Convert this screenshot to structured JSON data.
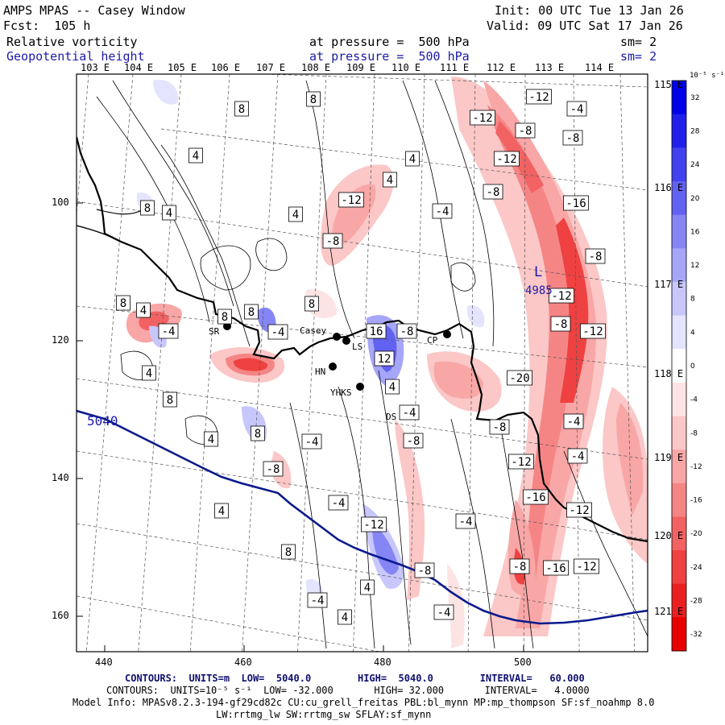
{
  "header": {
    "title": "AMPS MPAS -- Casey Window",
    "init": "Init: 00 UTC Tue 13 Jan 26",
    "fcst": "Fcst:  105 h",
    "valid": "Valid: 09 UTC Sat 17 Jan 26",
    "field1_name": "Relative vorticity",
    "field1_level": "at pressure =  500 hPa",
    "field1_sm": "sm= 2",
    "field2_name": "Geopotential height",
    "field2_level": "at pressure =  500 hPa",
    "field2_sm": "sm= 2"
  },
  "colors": {
    "positive_vorticity": "#ff0000",
    "negative_vorticity": "#0000ff",
    "height_contour": "#0a1a8c",
    "coast": "#000000"
  },
  "map": {
    "top_lon_labels": [
      "103 E",
      "104 E",
      "105 E",
      "106 E",
      "107 E",
      "108 E",
      "109 E",
      "110 E",
      "111 E",
      "112 E",
      "113 E",
      "114 E"
    ],
    "right_lon_labels": [
      "115 E",
      "116 E",
      "117 E",
      "118 E",
      "119 E",
      "120 E",
      "121 E"
    ],
    "x_ticks": [
      "440",
      "460",
      "480",
      "500"
    ],
    "y_ticks": [
      "100",
      "120",
      "140",
      "160"
    ],
    "height_label": "5040",
    "low_label": "L",
    "low_value": "4985",
    "stations": [
      {
        "name": "SR"
      },
      {
        "name": "Casey"
      },
      {
        "name": "LS"
      },
      {
        "name": "CP"
      },
      {
        "name": "HN"
      },
      {
        "name": "YHKS"
      },
      {
        "name": "DS"
      }
    ],
    "contour_labels": [
      "8",
      "8",
      "4",
      "8",
      "4",
      "4",
      "4",
      "8",
      "4",
      "-4",
      "4",
      "8",
      "8",
      "-4",
      "-8",
      "-12",
      "8",
      "16",
      "-8",
      "12",
      "-4",
      "8",
      "4",
      "-8",
      "4",
      "-12",
      "-4",
      "-8",
      "-12",
      "-12",
      "-8",
      "-16",
      "-8",
      "-12",
      "-8",
      "-12",
      "-20",
      "-4",
      "-4",
      "-8",
      "-12",
      "-12",
      "-16",
      "-8",
      "-16",
      "-12",
      "-4",
      "-8",
      "-4",
      "4",
      "4",
      "4",
      "-4",
      "8",
      "-4",
      "-8",
      "-4",
      "4",
      "8",
      "-12",
      "-4",
      "-8"
    ]
  },
  "colorbar": {
    "unit": "10⁻⁵ s⁻¹",
    "labels": [
      "32",
      "28",
      "24",
      "20",
      "16",
      "12",
      "8",
      "4",
      "0",
      "-4",
      "-8",
      "-12",
      "-16",
      "-20",
      "-24",
      "-28",
      "-32"
    ],
    "colors": [
      "#0000e6",
      "#2020ea",
      "#4141ef",
      "#6262f2",
      "#8585f5",
      "#a6a6f8",
      "#c7c7fb",
      "#e4e4fe",
      "#ffffff",
      "#fde4e4",
      "#fbc7c7",
      "#f8a6a6",
      "#f58585",
      "#f26262",
      "#ef4141",
      "#ea2020",
      "#e60000"
    ]
  },
  "footer": {
    "contours1": "CONTOURS:  UNITS=m  LOW=  5040.0        HIGH=  5040.0        INTERVAL=   60.000",
    "contours2": "CONTOURS:  UNITS=10⁻⁵ s⁻¹  LOW= -32.000       HIGH= 32.000       INTERVAL=   4.0000",
    "model_info": "Model Info: MPASv8.2.3-194-gf29cd82c CU:cu_grell_freitas PBL:bl_mynn MP:mp_thompson SF:sf_noahmp 8.0",
    "model_info2": "LW:rrtmg_lw SW:rrtmg_sw SFLAY:sf_mynn"
  }
}
